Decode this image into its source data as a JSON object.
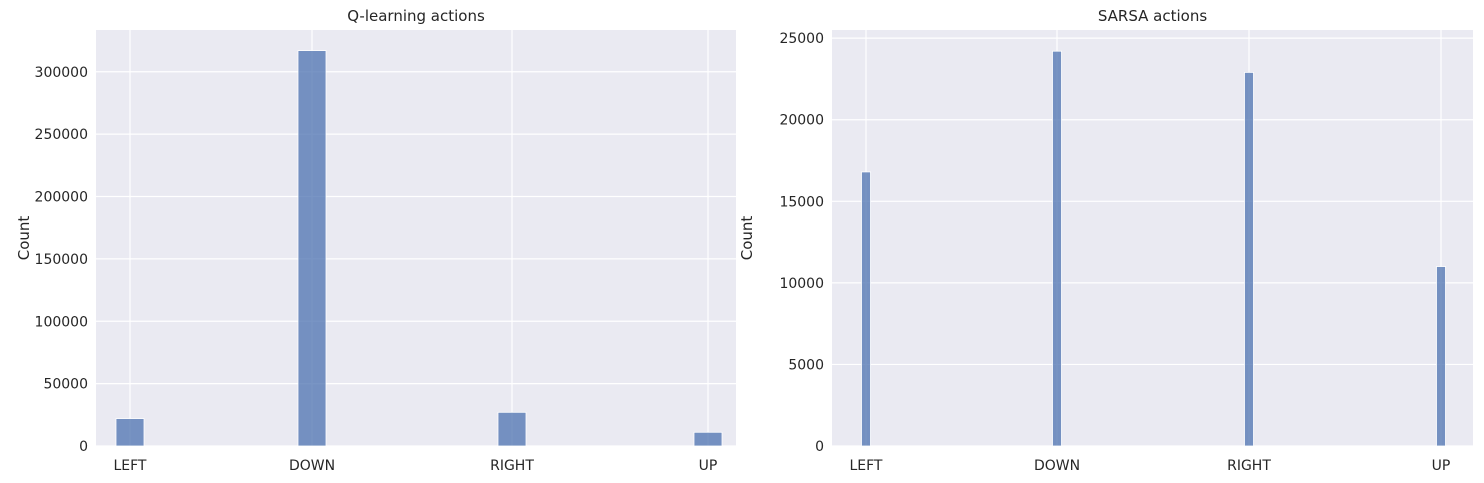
{
  "colors": {
    "plot_background": "#eaeaf2",
    "grid": "#ffffff",
    "bar_fill": "#4c72b0",
    "text": "#262626"
  },
  "chart_data": [
    {
      "type": "bar",
      "title": "Q-learning actions",
      "xlabel": "",
      "ylabel": "Count",
      "categories": [
        "LEFT",
        "DOWN",
        "RIGHT",
        "UP"
      ],
      "values": [
        22000,
        317000,
        27000,
        11000
      ],
      "ylim": [
        0,
        333500
      ],
      "yticks": [
        0,
        50000,
        100000,
        150000,
        200000,
        250000,
        300000
      ],
      "grid": true,
      "legend": "none"
    },
    {
      "type": "bar",
      "title": "SARSA actions",
      "xlabel": "",
      "ylabel": "Count",
      "categories": [
        "LEFT",
        "DOWN",
        "RIGHT",
        "UP"
      ],
      "values": [
        16800,
        24200,
        22900,
        11000
      ],
      "ylim": [
        0,
        25500
      ],
      "yticks": [
        0,
        5000,
        10000,
        15000,
        20000,
        25000
      ],
      "grid": true,
      "legend": "none"
    }
  ]
}
